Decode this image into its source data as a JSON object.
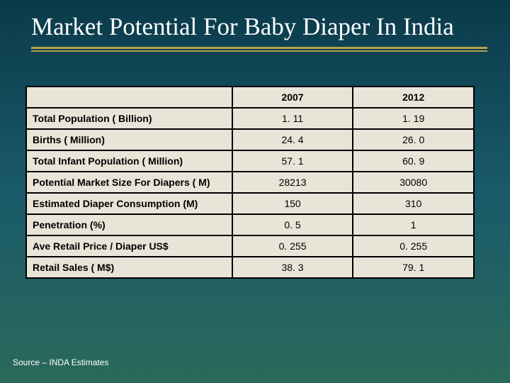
{
  "slide": {
    "title": "Market Potential For Baby Diaper In India",
    "title_color": "#ffffff",
    "title_fontsize": 35,
    "title_font": "Times New Roman",
    "rule_color": "#b8a04a",
    "background_gradient": [
      "#0a3a4a",
      "#1a5a6a",
      "#2a6a5a"
    ],
    "source": "Source – INDA Estimates",
    "source_fontsize": 12,
    "source_color": "#ffffff"
  },
  "table": {
    "type": "table",
    "background_color": "#e8e4d8",
    "border_color": "#000000",
    "header_fontsize": 14,
    "cell_fontsize": 14,
    "column_widths_pct": [
      46,
      27,
      27
    ],
    "columns": [
      "",
      "2007",
      "2012"
    ],
    "rows": [
      {
        "label": "Total Population ( Billion)",
        "y2007": "1. 11",
        "y2012": "1. 19"
      },
      {
        "label": "Births ( Million)",
        "y2007": "24. 4",
        "y2012": "26. 0"
      },
      {
        "label": "Total Infant Population ( Million)",
        "y2007": "57. 1",
        "y2012": "60. 9"
      },
      {
        "label": "Potential Market Size For Diapers ( M)",
        "y2007": "28213",
        "y2012": "30080"
      },
      {
        "label": "Estimated Diaper Consumption (M)",
        "y2007": "150",
        "y2012": "310"
      },
      {
        "label": "Penetration (%)",
        "y2007": "0. 5",
        "y2012": "1"
      },
      {
        "label": "Ave Retail Price / Diaper US$",
        "y2007": "0. 255",
        "y2012": "0. 255"
      },
      {
        "label": "Retail Sales ( M$)",
        "y2007": "38. 3",
        "y2012": "79. 1"
      }
    ]
  }
}
